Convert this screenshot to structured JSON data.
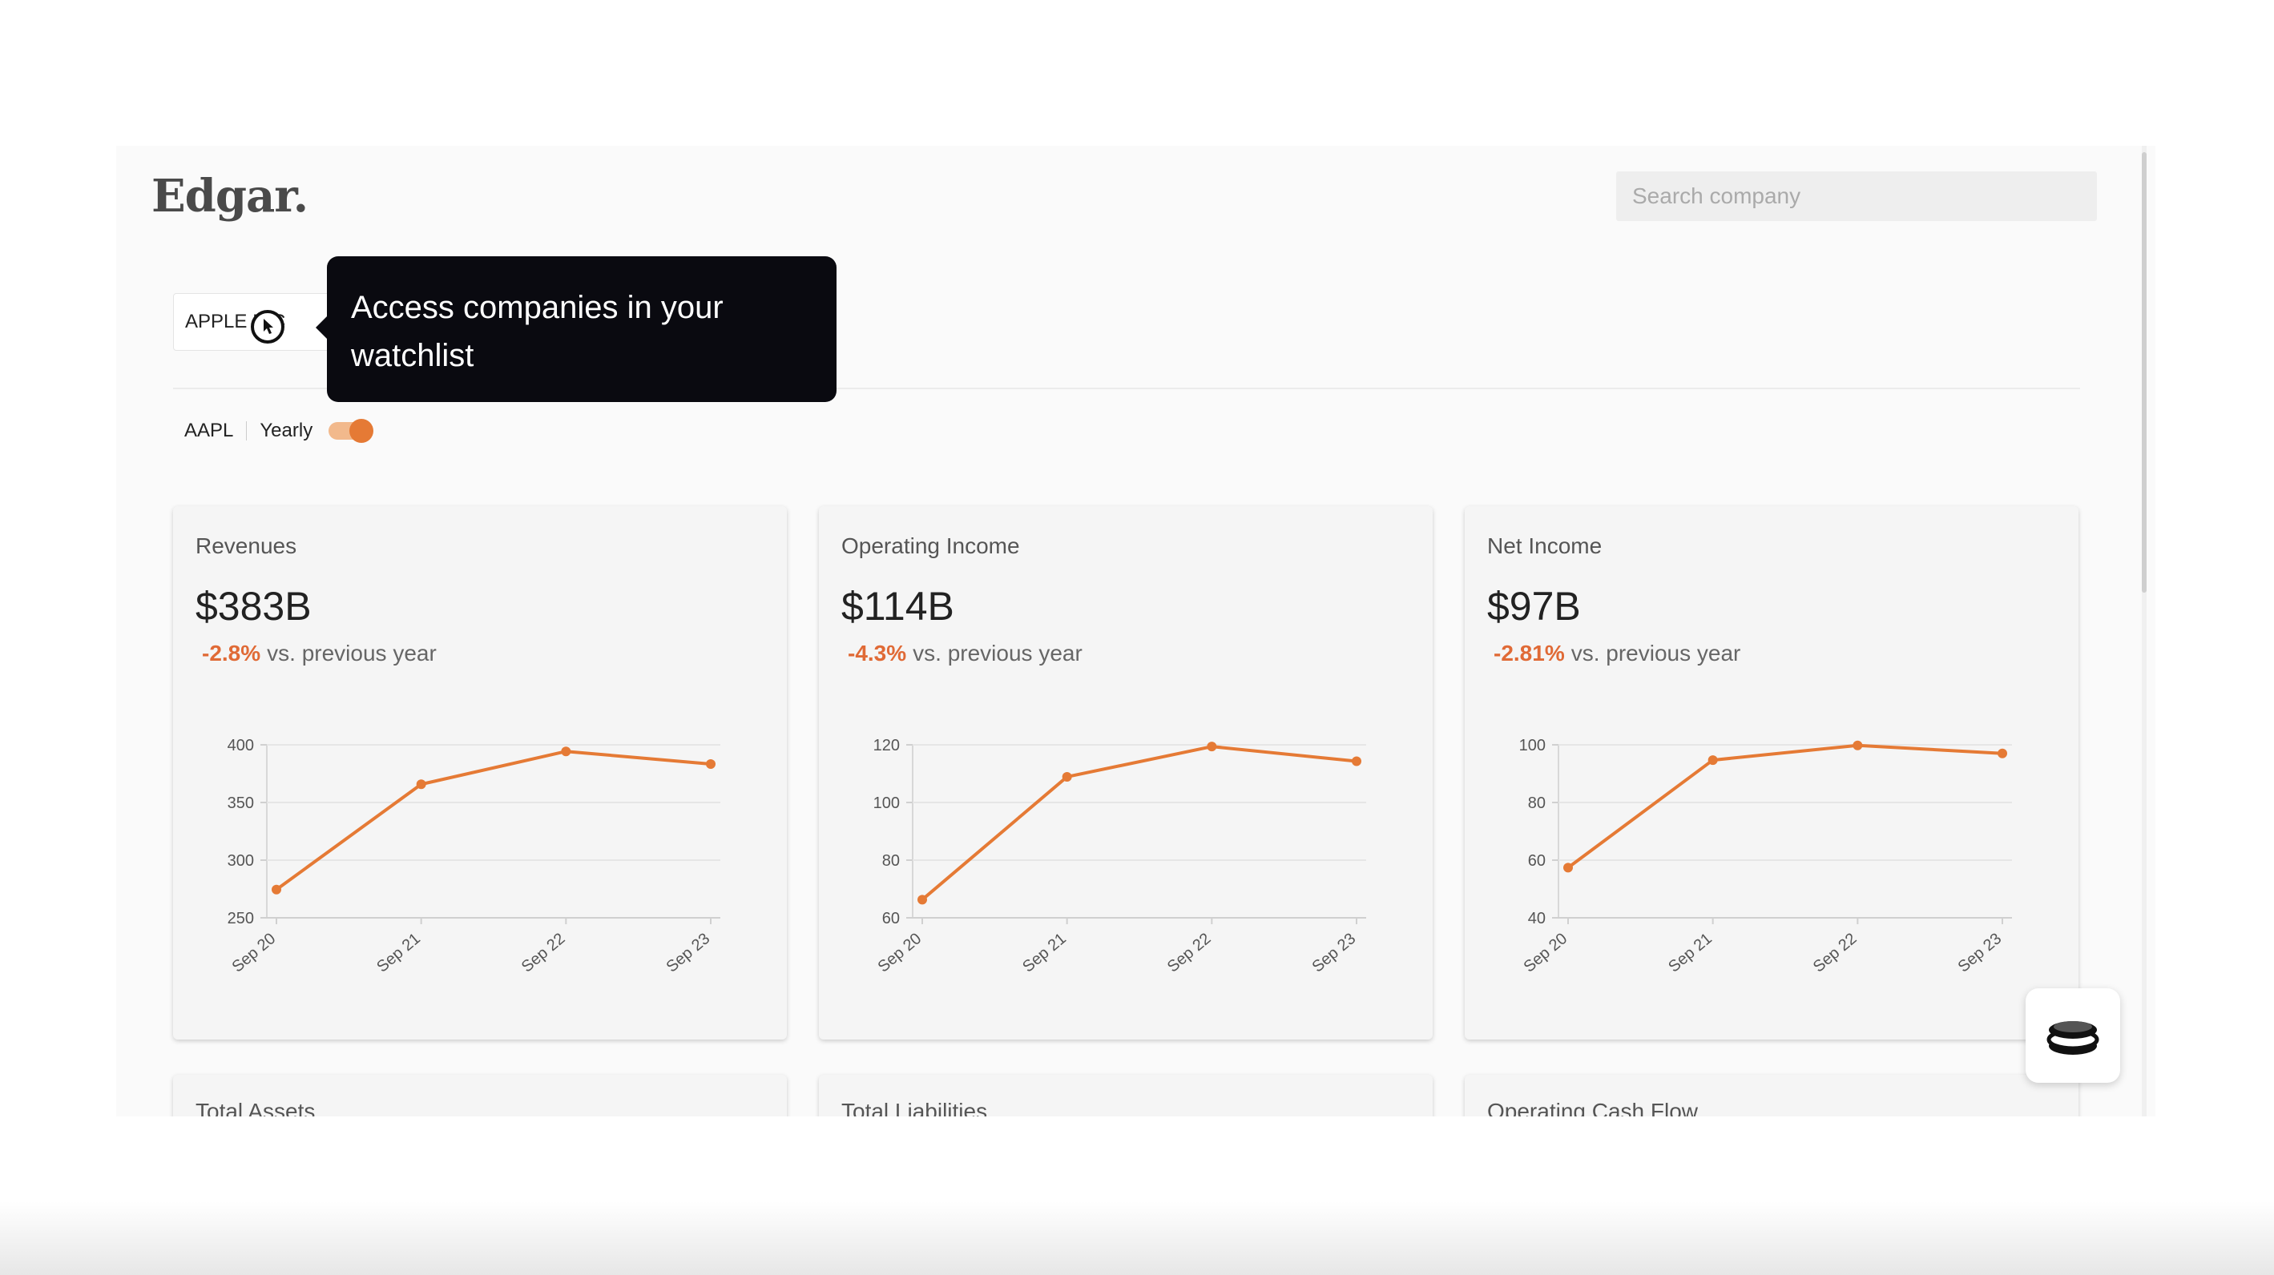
{
  "header": {
    "logo": "Edgar.",
    "search": {
      "placeholder": "Search company",
      "value": ""
    }
  },
  "company_select": {
    "label": "APPLE INC"
  },
  "tooltip": {
    "text": "Access companies in your watchlist"
  },
  "ticker_row": {
    "ticker": "AAPL",
    "period_label": "Yearly",
    "toggle_on": true
  },
  "cards": [
    {
      "title": "Revenues",
      "value": "$383B",
      "change": "-2.8%",
      "change_suffix": "vs. previous year"
    },
    {
      "title": "Operating Income",
      "value": "$114B",
      "change": "-4.3%",
      "change_suffix": "vs. previous year"
    },
    {
      "title": "Net Income",
      "value": "$97B",
      "change": "-2.81%",
      "change_suffix": "vs. previous year"
    }
  ],
  "bottom_cards": [
    {
      "title": "Total Assets"
    },
    {
      "title": "Total Liabilities"
    },
    {
      "title": "Operating Cash Flow"
    }
  ],
  "colors": {
    "accent": "#e57a35",
    "negative": "#e06a36"
  },
  "icons": {
    "chat_button": "stacked-coins-icon",
    "cursor": "pointer-cursor-icon"
  },
  "chart_data": [
    {
      "type": "line",
      "categories": [
        "Sep 20",
        "Sep 21",
        "Sep 22",
        "Sep 23"
      ],
      "series": [
        {
          "values": [
            274.5,
            365.8,
            394.3,
            383.3
          ]
        }
      ],
      "yticks": [
        "250",
        "300",
        "350",
        "400"
      ],
      "ylim": [
        250,
        400
      ],
      "grid": true
    },
    {
      "type": "line",
      "categories": [
        "Sep 20",
        "Sep 21",
        "Sep 22",
        "Sep 23"
      ],
      "series": [
        {
          "values": [
            66.3,
            108.9,
            119.4,
            114.3
          ]
        }
      ],
      "yticks": [
        "60",
        "80",
        "100",
        "120"
      ],
      "ylim": [
        60,
        120
      ],
      "grid": true
    },
    {
      "type": "line",
      "categories": [
        "Sep 20",
        "Sep 21",
        "Sep 22",
        "Sep 23"
      ],
      "series": [
        {
          "values": [
            57.4,
            94.7,
            99.8,
            97.0
          ]
        }
      ],
      "yticks": [
        "40",
        "60",
        "80",
        "100"
      ],
      "ylim": [
        40,
        100
      ],
      "grid": true
    }
  ]
}
